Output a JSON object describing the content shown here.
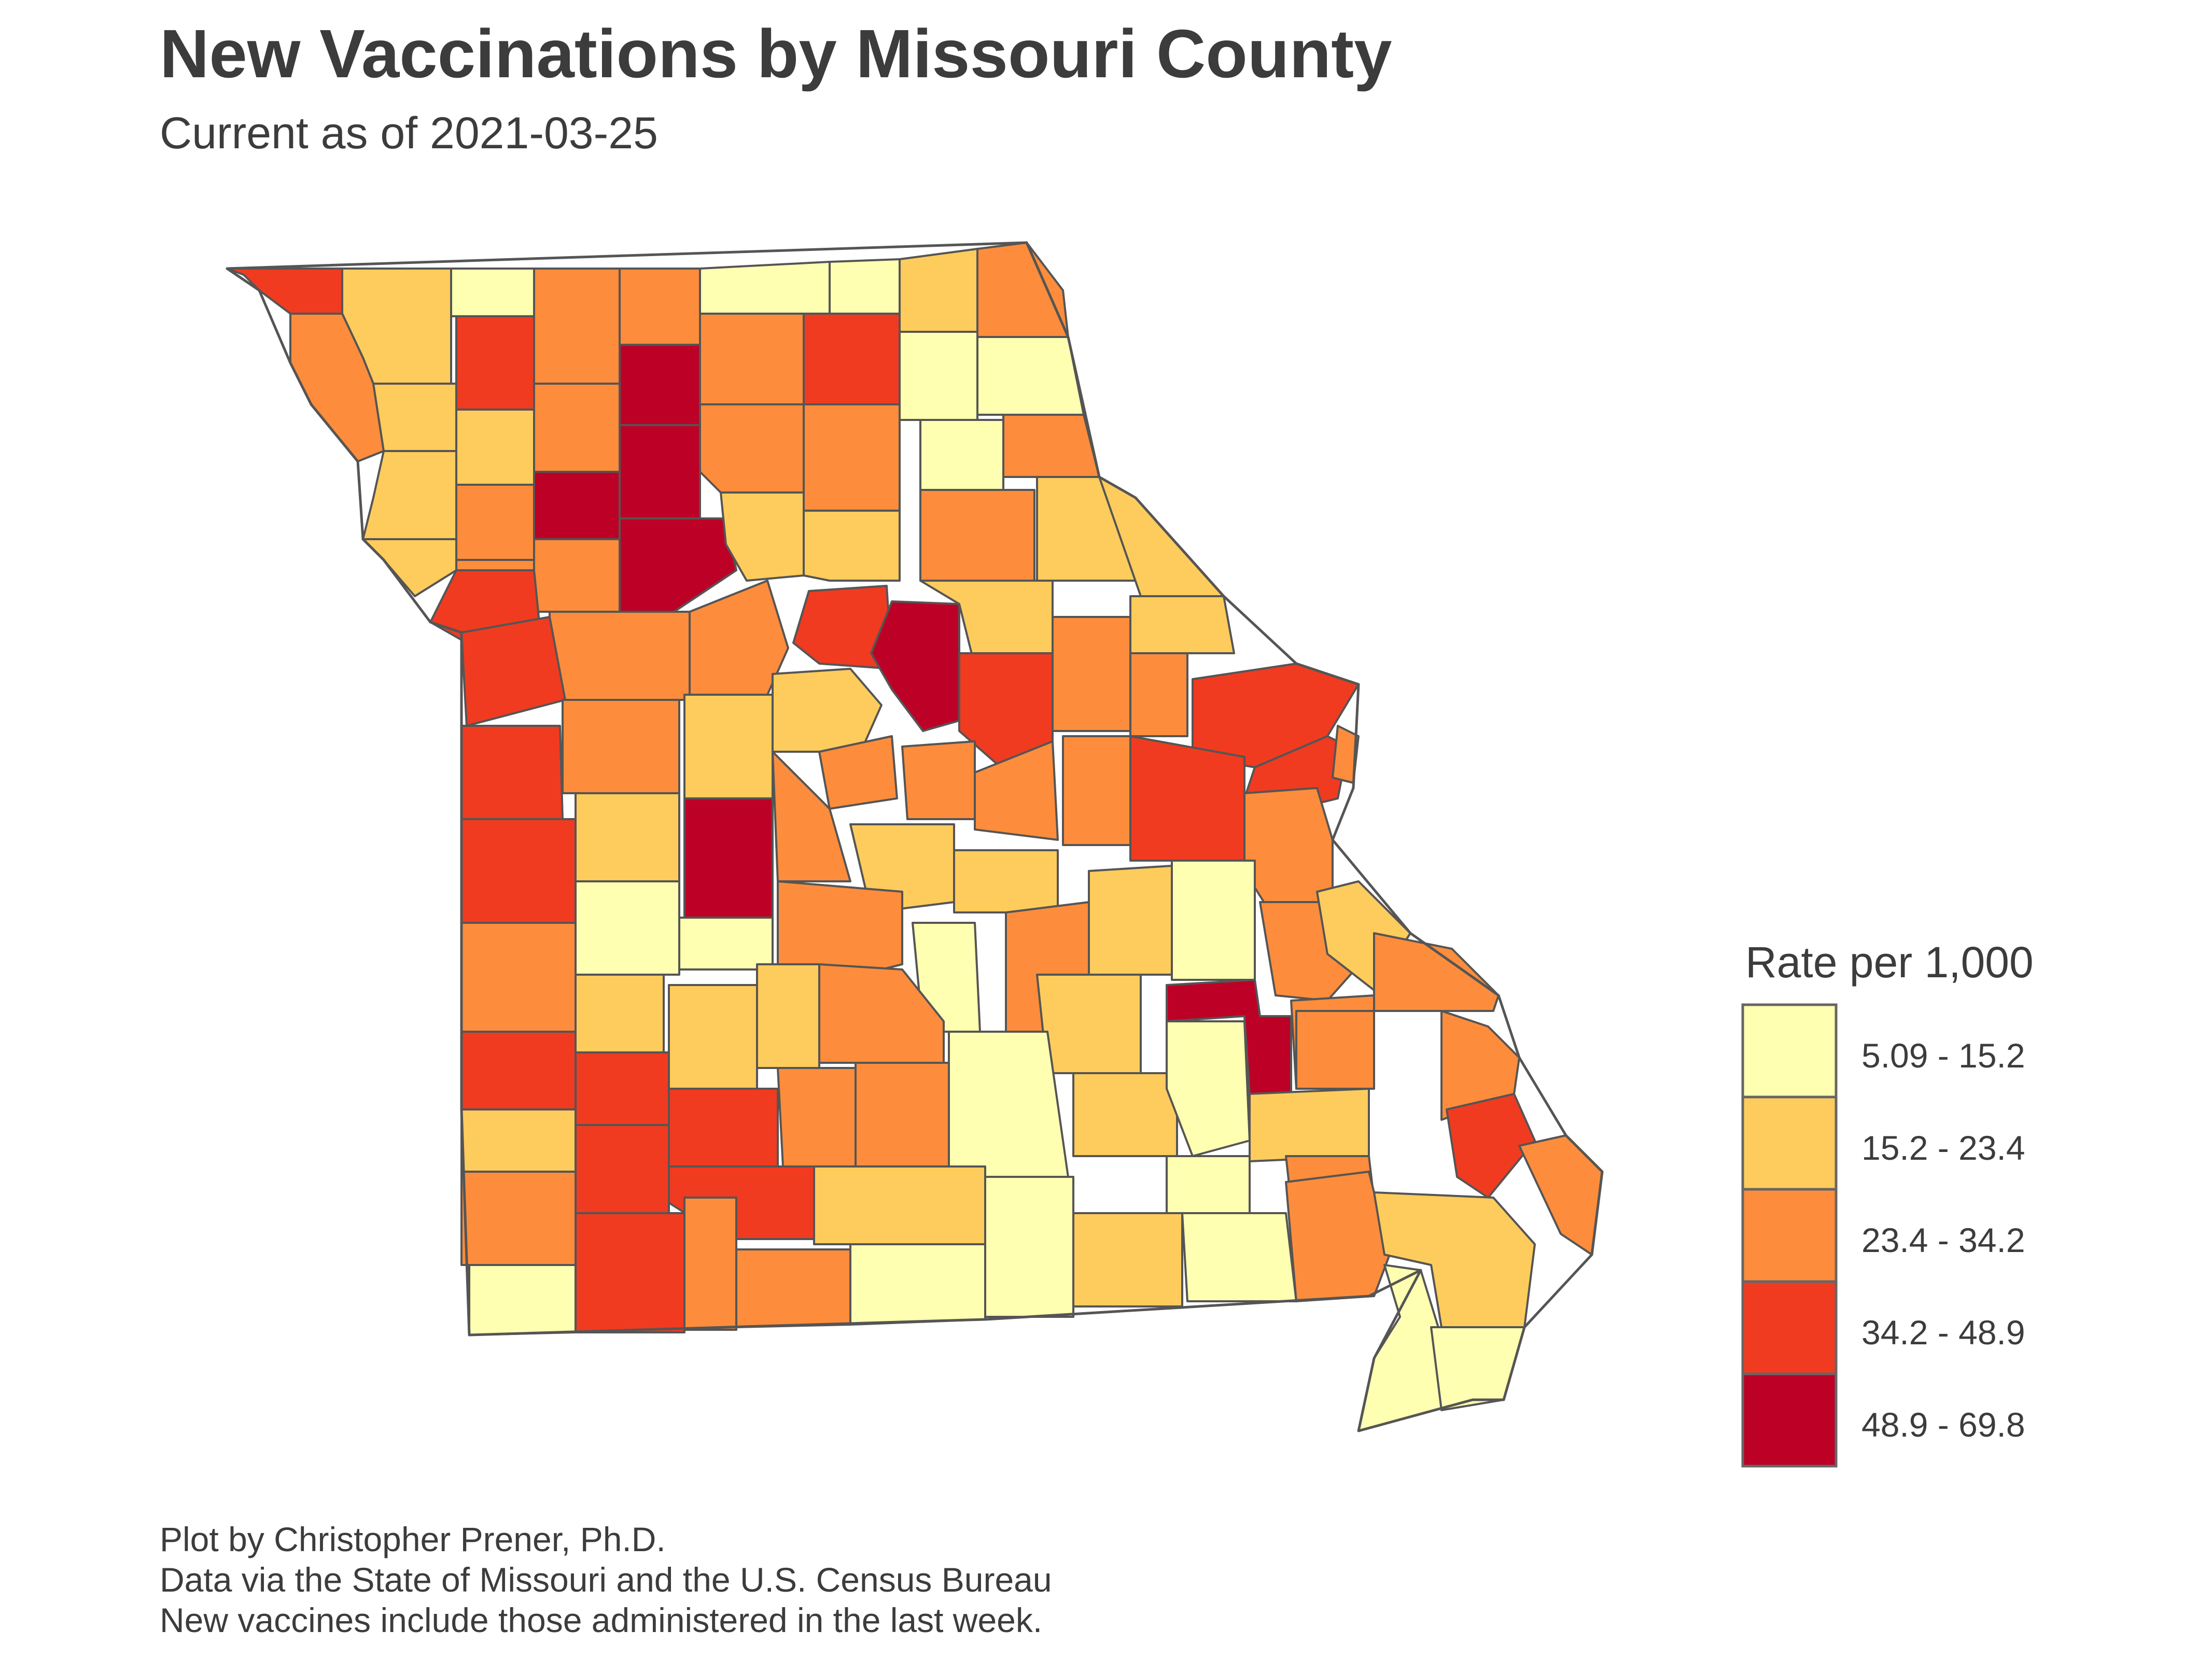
{
  "title": "New Vaccinations by Missouri County",
  "subtitle": "Current as of 2021-03-25",
  "legend": {
    "title": "Rate per 1,000",
    "classes": [
      {
        "label": "5.09 - 15.2",
        "color": "#ffffb2"
      },
      {
        "label": "15.2 - 23.4",
        "color": "#fecc5c"
      },
      {
        "label": "23.4 - 34.2",
        "color": "#fd8d3c"
      },
      {
        "label": "34.2 - 48.9",
        "color": "#f03b20"
      },
      {
        "label": "48.9 - 69.8",
        "color": "#bd0026"
      }
    ]
  },
  "caption": {
    "line1": "Plot by Christopher Prener, Ph.D.",
    "line2": "Data via the State of Missouri and the U.S. Census Bureau",
    "line3": "New vaccines include those administered in the last week."
  },
  "map": {
    "border_color": "#555555",
    "region": "Missouri counties"
  }
}
